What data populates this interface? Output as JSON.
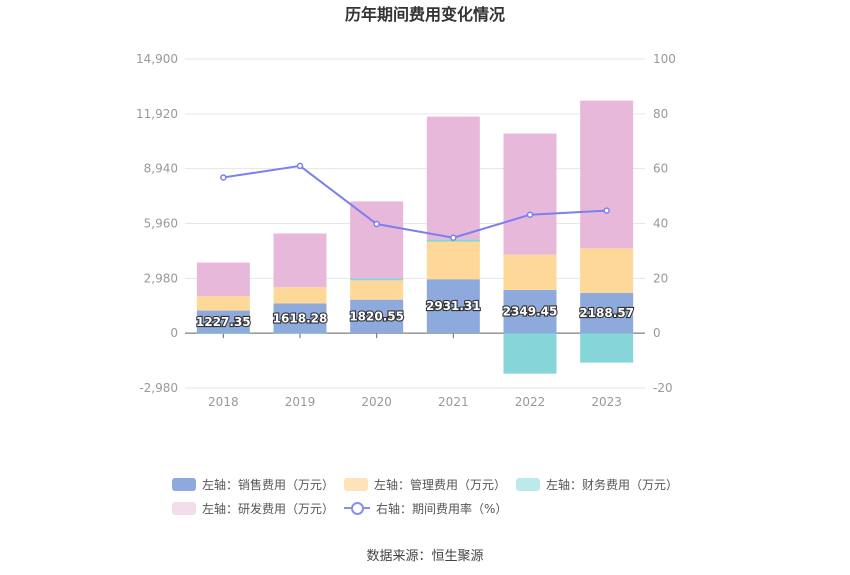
{
  "chart_data": {
    "type": "bar",
    "title": "历年期间费用变化情况",
    "categories": [
      "2018",
      "2019",
      "2020",
      "2021",
      "2022",
      "2023"
    ],
    "stacked": true,
    "y_left": {
      "ticks": [
        -2980,
        0,
        2980,
        5960,
        8940,
        11920,
        14900
      ],
      "tick_labels": [
        "-2,980",
        "0",
        "2,980",
        "5,960",
        "8,940",
        "11,920",
        "14,900"
      ],
      "range": [
        -2980,
        14900
      ]
    },
    "y_right": {
      "ticks": [
        -20,
        0,
        20,
        40,
        60,
        80,
        100
      ],
      "tick_labels": [
        "-20",
        "0",
        "20",
        "40",
        "60",
        "80",
        "100"
      ],
      "range": [
        -20,
        100
      ]
    },
    "series": [
      {
        "name": "左轴：销售费用（万元）",
        "axis": "left",
        "color": "#8eaadc",
        "values": [
          1227.35,
          1618.28,
          1820.55,
          2931.31,
          2349.45,
          2188.57
        ],
        "labels": [
          "1227.35",
          "1618.28",
          "1820.55",
          "2931.31",
          "2349.45",
          "2188.57"
        ]
      },
      {
        "name": "左轴：管理费用（万元）",
        "axis": "left",
        "color": "#fdd899",
        "values": [
          780,
          880,
          1050,
          2050,
          1920,
          2420
        ]
      },
      {
        "name": "左轴：财务费用（万元）",
        "axis": "left",
        "color": "#86d5d8",
        "values": [
          -40,
          -30,
          110,
          120,
          -2200,
          -1600
        ]
      },
      {
        "name": "左轴：研发费用（万元）",
        "axis": "left",
        "color": "#e7b8da",
        "values": [
          1830,
          2920,
          4180,
          6670,
          6580,
          8030
        ]
      },
      {
        "name": "右轴：期间费用率（%）",
        "axis": "right",
        "type": "line",
        "color": "#7b7ff0",
        "values": [
          56.8,
          61,
          39.8,
          34.8,
          43.2,
          44.7
        ]
      }
    ],
    "legend": {
      "position": "bottom"
    },
    "grid": true
  },
  "legend_items": [
    {
      "label": "左轴：销售费用（万元）",
      "color": "#8eaadc"
    },
    {
      "label": "左轴：管理费用（万元）",
      "color": "#fde3b8"
    },
    {
      "label": "左轴：财务费用（万元）",
      "color": "#bde9ea"
    },
    {
      "label": "左轴：研发费用（万元）",
      "color": "#f3dcec"
    },
    {
      "label": "右轴：期间费用率（%）",
      "color": "#8a8ef0"
    }
  ],
  "source": "数据来源：恒生聚源"
}
